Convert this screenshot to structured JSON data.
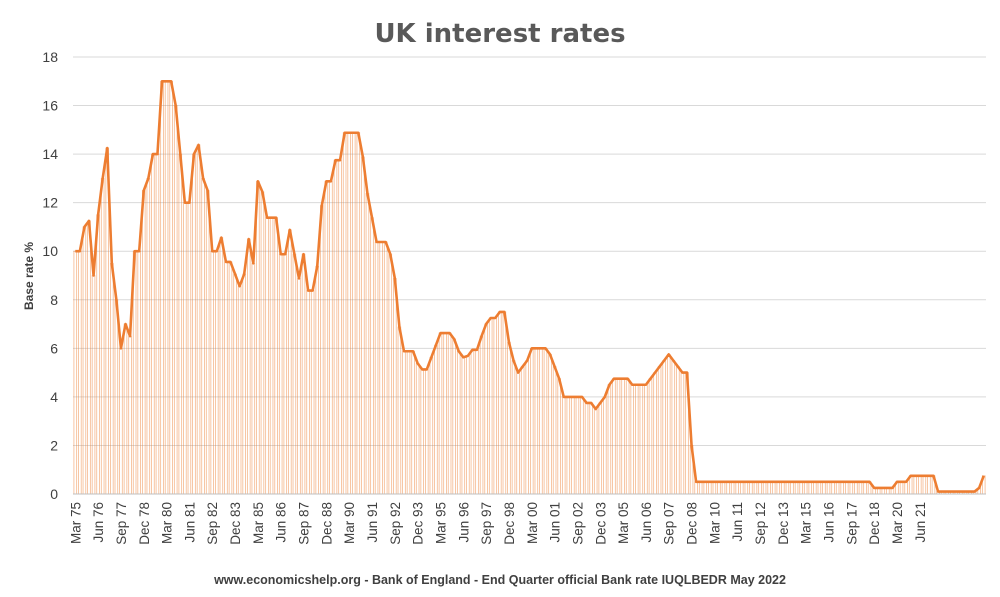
{
  "chart_data": {
    "type": "area",
    "title": "UK interest rates",
    "xlabel": "",
    "ylabel": "Base rate %",
    "source": "www.economicshelp.org - Bank of England - End Quarter official Bank rate IUQLBEDR May 2022",
    "ylim": [
      0,
      18
    ],
    "yticks": [
      0,
      2,
      4,
      6,
      8,
      10,
      12,
      14,
      16,
      18
    ],
    "grid": true,
    "legend": "none",
    "colors": {
      "line": "#ed7d31",
      "fill": "#ed7d31",
      "grid": "#d9d9d9",
      "title": "#595959",
      "text": "#404040"
    },
    "x_start": "Mar 75",
    "x_end": "Jun 22",
    "tick_labels": [
      "Mar 75",
      "Jun 76",
      "Sep 77",
      "Dec 78",
      "Mar 80",
      "Jun 81",
      "Sep 82",
      "Dec 83",
      "Mar 85",
      "Jun 86",
      "Sep 87",
      "Dec 88",
      "Mar 90",
      "Jun 91",
      "Sep 92",
      "Dec 93",
      "Mar 95",
      "Jun 96",
      "Sep 97",
      "Dec 98",
      "Mar 00",
      "Jun 01",
      "Sep 02",
      "Dec 03",
      "Mar 05",
      "Jun 06",
      "Sep 07",
      "Dec 08",
      "Mar 10",
      "Jun 11",
      "Sep 12",
      "Dec 13",
      "Mar 15",
      "Jun 16",
      "Sep 17",
      "Dec 18",
      "Mar 20",
      "Jun 21"
    ],
    "values": [
      10.0,
      10.0,
      11.0,
      11.25,
      9.0,
      11.5,
      13.0,
      14.25,
      9.5,
      8.0,
      6.0,
      7.0,
      6.5,
      10.0,
      10.0,
      12.5,
      13.0,
      14.0,
      14.0,
      17.0,
      17.0,
      17.0,
      16.0,
      14.0,
      12.0,
      12.0,
      14.0,
      14.38,
      13.0,
      12.5,
      10.0,
      10.0,
      10.56,
      9.56,
      9.56,
      9.06,
      8.56,
      9.06,
      10.5,
      9.5,
      12.88,
      12.44,
      11.38,
      11.38,
      11.38,
      9.88,
      9.88,
      10.88,
      9.88,
      8.88,
      9.88,
      8.38,
      8.38,
      9.38,
      11.88,
      12.88,
      12.88,
      13.75,
      13.75,
      14.88,
      14.88,
      14.88,
      14.88,
      13.88,
      12.38,
      11.38,
      10.38,
      10.38,
      10.38,
      9.88,
      8.88,
      6.88,
      5.88,
      5.88,
      5.88,
      5.38,
      5.13,
      5.13,
      5.63,
      6.13,
      6.63,
      6.63,
      6.63,
      6.38,
      5.88,
      5.63,
      5.69,
      5.94,
      5.94,
      6.5,
      7.0,
      7.25,
      7.25,
      7.5,
      7.5,
      6.25,
      5.5,
      5.0,
      5.25,
      5.5,
      6.0,
      6.0,
      6.0,
      6.0,
      5.75,
      5.25,
      4.75,
      4.0,
      4.0,
      4.0,
      4.0,
      4.0,
      3.75,
      3.75,
      3.5,
      3.75,
      4.0,
      4.5,
      4.75,
      4.75,
      4.75,
      4.75,
      4.5,
      4.5,
      4.5,
      4.5,
      4.75,
      5.0,
      5.25,
      5.5,
      5.75,
      5.5,
      5.25,
      5.0,
      5.0,
      2.0,
      0.5,
      0.5,
      0.5,
      0.5,
      0.5,
      0.5,
      0.5,
      0.5,
      0.5,
      0.5,
      0.5,
      0.5,
      0.5,
      0.5,
      0.5,
      0.5,
      0.5,
      0.5,
      0.5,
      0.5,
      0.5,
      0.5,
      0.5,
      0.5,
      0.5,
      0.5,
      0.5,
      0.5,
      0.5,
      0.5,
      0.5,
      0.5,
      0.5,
      0.5,
      0.5,
      0.5,
      0.5,
      0.5,
      0.5,
      0.25,
      0.25,
      0.25,
      0.25,
      0.25,
      0.5,
      0.5,
      0.5,
      0.75,
      0.75,
      0.75,
      0.75,
      0.75,
      0.75,
      0.1,
      0.1,
      0.1,
      0.1,
      0.1,
      0.1,
      0.1,
      0.1,
      0.1,
      0.25,
      0.75
    ]
  }
}
